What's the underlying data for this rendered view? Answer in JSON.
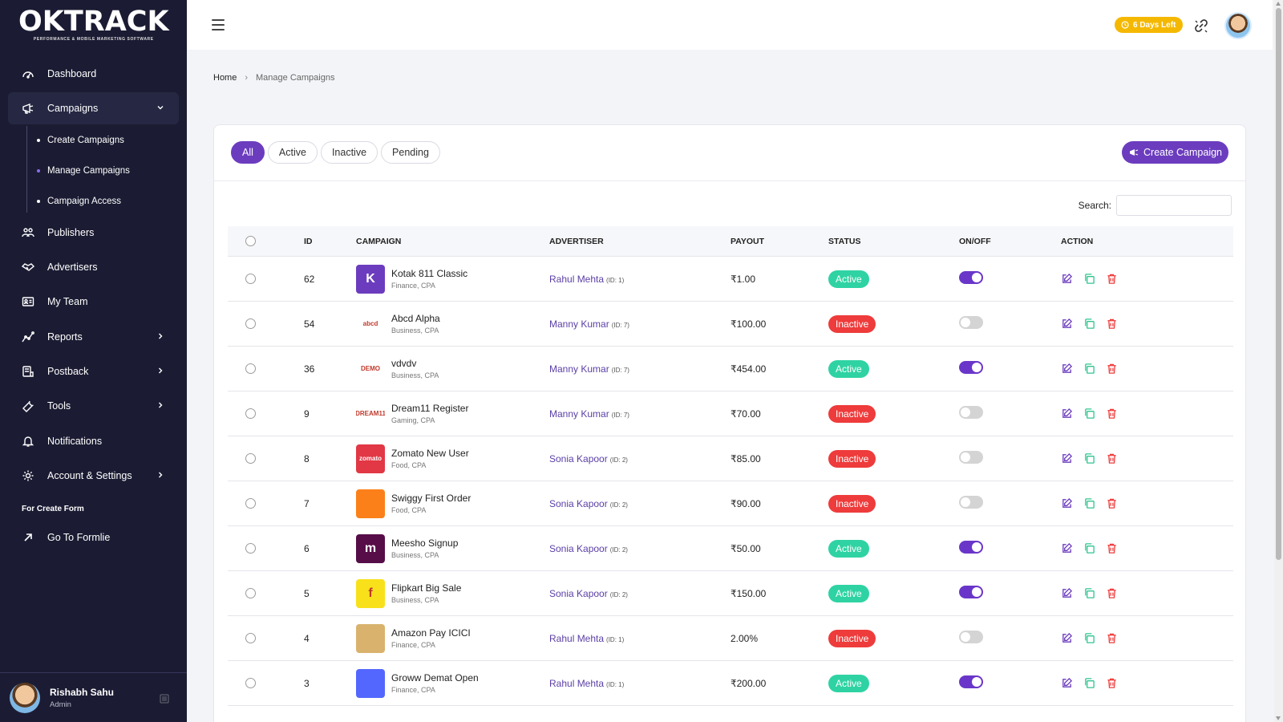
{
  "brand": {
    "name": "OKTRACK",
    "tagline": "PERFORMANCE & MOBILE MARKETING SOFTWARE"
  },
  "sidebar": {
    "items": [
      {
        "label": "Dashboard",
        "icon": "gauge-icon"
      },
      {
        "label": "Campaigns",
        "icon": "megaphone-icon"
      },
      {
        "label": "Publishers",
        "icon": "users-icon"
      },
      {
        "label": "Advertisers",
        "icon": "handshake-icon"
      },
      {
        "label": "My Team",
        "icon": "id-card-icon"
      },
      {
        "label": "Reports",
        "icon": "chart-line-icon"
      },
      {
        "label": "Postback",
        "icon": "server-icon"
      },
      {
        "label": "Tools",
        "icon": "wrench-icon"
      },
      {
        "label": "Notifications",
        "icon": "bell-icon"
      },
      {
        "label": "Account & Settings",
        "icon": "gear-icon"
      }
    ],
    "sub_items": [
      "Create Campaigns",
      "Manage Campaigns",
      "Campaign Access"
    ],
    "section_label": "For Create Form",
    "formlie_link": "Go To Formlie",
    "user": {
      "name": "Rishabh Sahu",
      "role": "Admin"
    }
  },
  "topbar": {
    "days_left": "6 Days Left"
  },
  "breadcrumb": {
    "home": "Home",
    "separator": "›",
    "current": "Manage Campaigns"
  },
  "filters": [
    "All",
    "Active",
    "Inactive",
    "Pending"
  ],
  "create_button": "Create Campaign",
  "search": {
    "label": "Search:"
  },
  "table": {
    "headers": [
      "ID",
      "CAMPAIGN",
      "ADVERTISER",
      "PAYOUT",
      "STATUS",
      "ON/OFF",
      "ACTION"
    ],
    "rows": [
      {
        "id": "62",
        "name": "Kotak 811 Classic",
        "meta": "Finance, CPA",
        "advertiser": "Rahul Mehta",
        "adv_id": "(ID: 1)",
        "payout": "₹1.00",
        "status": "Active",
        "on": true,
        "logo_text": "K",
        "logo_color": "#6c3cbf"
      },
      {
        "id": "54",
        "name": "Abcd Alpha",
        "meta": "Business, CPA",
        "advertiser": "Manny Kumar",
        "adv_id": "(ID: 7)",
        "payout": "₹100.00",
        "status": "Inactive",
        "on": false,
        "logo_text": "abcd",
        "logo_color": "#ffffff"
      },
      {
        "id": "36",
        "name": "vdvdv",
        "meta": "Business, CPA",
        "advertiser": "Manny Kumar",
        "adv_id": "(ID: 7)",
        "payout": "₹454.00",
        "status": "Active",
        "on": true,
        "logo_text": "DEMO",
        "logo_color": "#ffffff"
      },
      {
        "id": "9",
        "name": "Dream11 Register",
        "meta": "Gaming, CPA",
        "advertiser": "Manny Kumar",
        "adv_id": "(ID: 7)",
        "payout": "₹70.00",
        "status": "Inactive",
        "on": false,
        "logo_text": "DREAM11",
        "logo_color": "#ffffff"
      },
      {
        "id": "8",
        "name": "Zomato New User",
        "meta": "Food, CPA",
        "advertiser": "Sonia Kapoor",
        "adv_id": "(ID: 2)",
        "payout": "₹85.00",
        "status": "Inactive",
        "on": false,
        "logo_text": "zomato",
        "logo_color": "#e23744"
      },
      {
        "id": "7",
        "name": "Swiggy First Order",
        "meta": "Food, CPA",
        "advertiser": "Sonia Kapoor",
        "adv_id": "(ID: 2)",
        "payout": "₹90.00",
        "status": "Inactive",
        "on": false,
        "logo_text": "",
        "logo_color": "#fc8019"
      },
      {
        "id": "6",
        "name": "Meesho Signup",
        "meta": "Business, CPA",
        "advertiser": "Sonia Kapoor",
        "adv_id": "(ID: 2)",
        "payout": "₹50.00",
        "status": "Active",
        "on": true,
        "logo_text": "m",
        "logo_color": "#570d48"
      },
      {
        "id": "5",
        "name": "Flipkart Big Sale",
        "meta": "Business, CPA",
        "advertiser": "Sonia Kapoor",
        "adv_id": "(ID: 2)",
        "payout": "₹150.00",
        "status": "Active",
        "on": true,
        "logo_text": "f",
        "logo_color": "#f8e11a"
      },
      {
        "id": "4",
        "name": "Amazon Pay ICICI",
        "meta": "Finance, CPA",
        "advertiser": "Rahul Mehta",
        "adv_id": "(ID: 1)",
        "payout": "2.00%",
        "status": "Inactive",
        "on": false,
        "logo_text": "",
        "logo_color": "#d9b26d"
      },
      {
        "id": "3",
        "name": "Groww Demat Open",
        "meta": "Finance, CPA",
        "advertiser": "Rahul Mehta",
        "adv_id": "(ID: 1)",
        "payout": "₹200.00",
        "status": "Active",
        "on": true,
        "logo_text": "",
        "logo_color": "#5367ff"
      }
    ]
  },
  "colors": {
    "accent": "#6c3cbf",
    "active": "#2fd3a3",
    "inactive": "#ee3b3b",
    "sidebar": "#1b1c33"
  }
}
